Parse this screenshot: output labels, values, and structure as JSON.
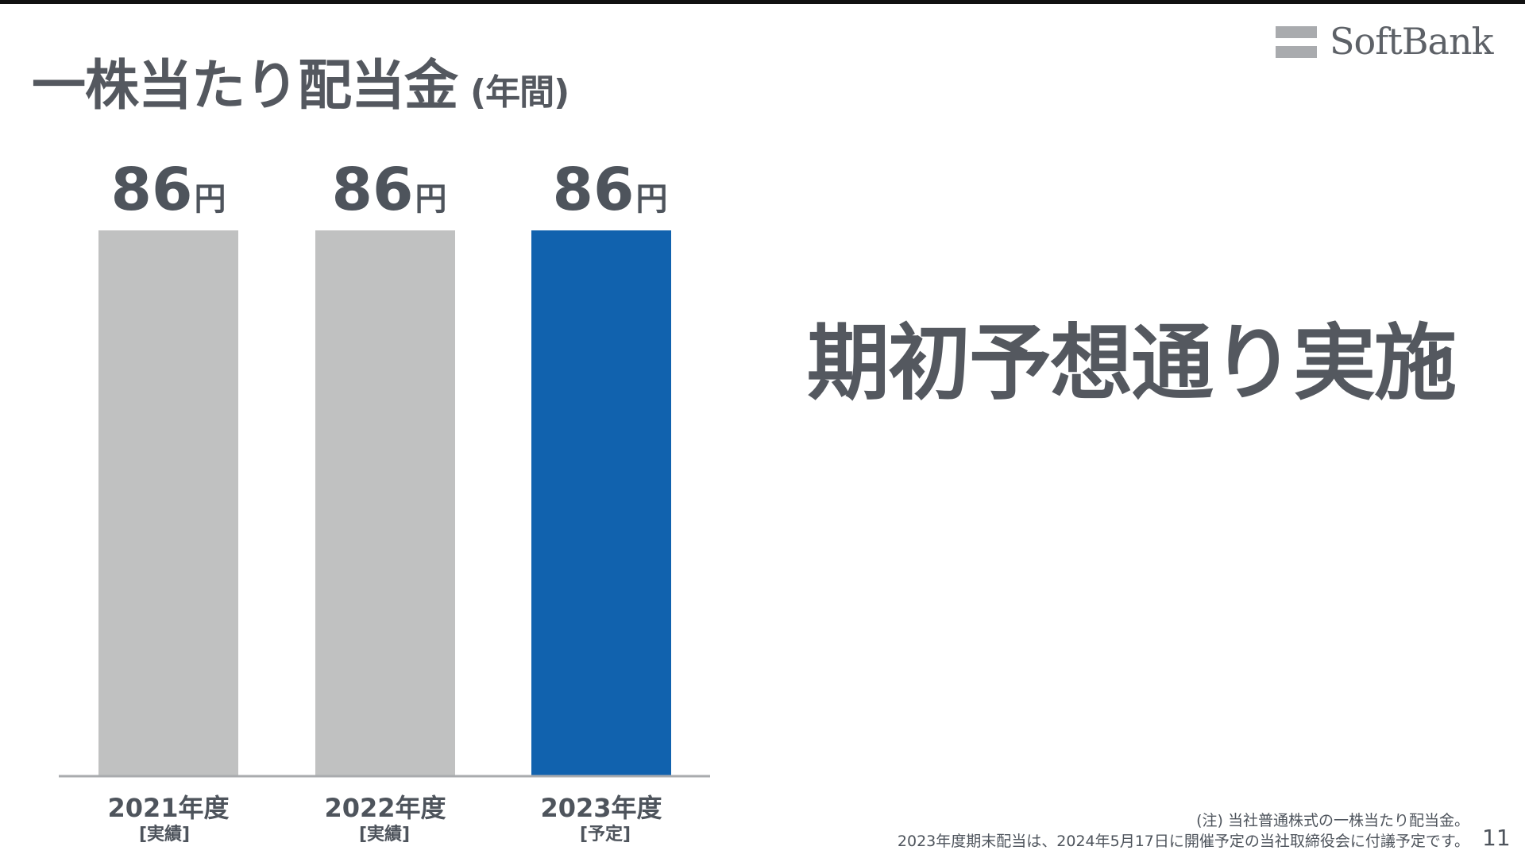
{
  "slide": {
    "title": "一株当たり配当金",
    "title_suffix": "(年間)",
    "headline": "期初予想通り実施",
    "note_line1": "(注) 当社普通株式の一株当たり配当金。",
    "note_line2": "2023年度期末配当は、2024年5月17日に開催予定の当社取締役会に付議予定です。",
    "page_number": "11"
  },
  "logo": {
    "text": "SoftBank"
  },
  "chart_data": {
    "type": "bar",
    "categories": [
      "2021年度",
      "2022年度",
      "2023年度"
    ],
    "category_status": [
      "[実績]",
      "[実績]",
      "[予定]"
    ],
    "values": [
      86,
      86,
      86
    ],
    "value_unit": "円",
    "value_labels": [
      "86",
      "86",
      "86"
    ],
    "colors": [
      "#c0c1c1",
      "#c0c1c1",
      "#1162ae"
    ],
    "axis_color": "#a9abae"
  }
}
